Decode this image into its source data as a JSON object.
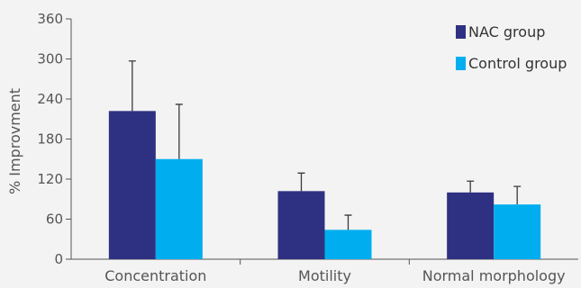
{
  "chart_data": {
    "type": "bar",
    "title": "",
    "xlabel": "",
    "ylabel": "% Improvment",
    "ylim": [
      0,
      360
    ],
    "yticks": [
      0,
      60,
      120,
      180,
      240,
      300,
      360
    ],
    "categories": [
      "Concentration",
      "Motility",
      "Normal morphology"
    ],
    "series": [
      {
        "name": "NAC group",
        "color": "#2e3182",
        "values": [
          222,
          102,
          100
        ],
        "error": [
          75,
          27,
          17
        ]
      },
      {
        "name": "Control group",
        "color": "#00aeef",
        "values": [
          150,
          44,
          82
        ],
        "error": [
          82,
          22,
          27
        ]
      }
    ],
    "grid": false,
    "legend_position": "top-right"
  }
}
